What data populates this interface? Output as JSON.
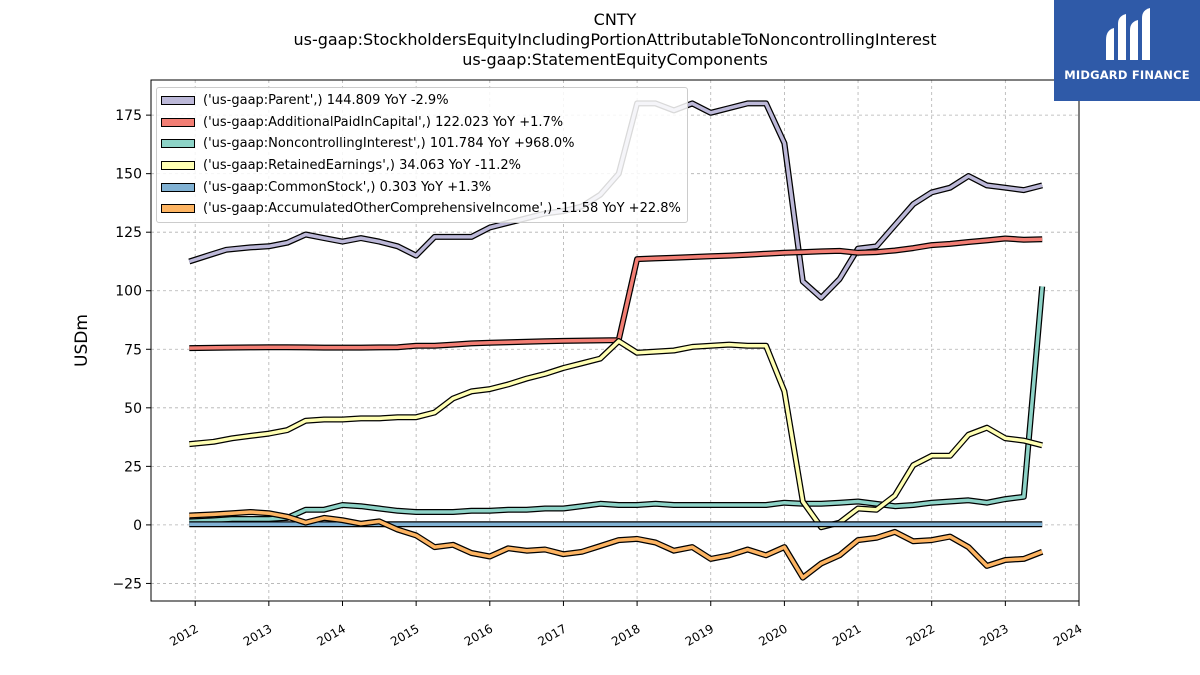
{
  "chart_data": {
    "type": "line",
    "title": "CNTY",
    "subtitle_lines": [
      "us-gaap:StockholdersEquityIncludingPortionAttributableToNoncontrollingInterest",
      "us-gaap:StatementEquityComponents"
    ],
    "ylabel": "USDm",
    "xlabel": "",
    "ylim": [
      -32.5,
      190
    ],
    "yticks": [
      -25,
      0,
      25,
      50,
      75,
      100,
      125,
      150,
      175
    ],
    "xlim": [
      2011.4,
      2024.0
    ],
    "xticks": [
      "2012",
      "2013",
      "2014",
      "2015",
      "2016",
      "2017",
      "2018",
      "2019",
      "2020",
      "2021",
      "2022",
      "2023",
      "2024"
    ],
    "grid": true,
    "legend_position": "top-left",
    "series": [
      {
        "name": "('us-gaap:Parent',) 144.809 YoY -2.9%",
        "color": "#bcb8d8",
        "x": [
          2011.92,
          2012.17,
          2012.42,
          2012.75,
          2013.0,
          2013.25,
          2013.5,
          2013.75,
          2014.0,
          2014.25,
          2014.5,
          2014.75,
          2015.0,
          2015.25,
          2015.5,
          2015.75,
          2016.0,
          2016.25,
          2016.5,
          2016.75,
          2017.0,
          2017.25,
          2017.5,
          2017.75,
          2018.0,
          2018.25,
          2018.5,
          2018.75,
          2019.0,
          2019.25,
          2019.5,
          2019.75,
          2020.0,
          2020.25,
          2020.5,
          2020.75,
          2021.0,
          2021.25,
          2021.5,
          2021.75,
          2022.0,
          2022.25,
          2022.5,
          2022.75,
          2023.0,
          2023.25,
          2023.5
        ],
        "y": [
          112.5,
          115,
          117.5,
          118.5,
          119,
          120.5,
          124,
          122.5,
          121,
          122.5,
          121,
          119,
          115,
          123,
          123,
          123,
          127,
          129,
          131,
          133,
          134,
          136,
          141,
          150,
          180,
          180,
          177,
          180,
          176,
          178,
          180,
          180,
          163,
          104,
          97,
          105,
          118,
          119,
          128,
          137,
          142,
          144,
          149,
          145,
          144,
          143,
          145
        ]
      },
      {
        "name": "('us-gaap:AdditionalPaidInCapital',) 122.023 YoY +1.7%",
        "color": "#f27e74",
        "x": [
          2011.92,
          2012.42,
          2012.75,
          2013.0,
          2013.25,
          2013.5,
          2013.75,
          2014.0,
          2014.25,
          2014.5,
          2014.75,
          2015.0,
          2015.25,
          2015.5,
          2015.75,
          2016.0,
          2016.25,
          2016.5,
          2016.75,
          2017.0,
          2017.25,
          2017.5,
          2017.75,
          2018.0,
          2018.25,
          2018.5,
          2018.75,
          2019.0,
          2019.25,
          2019.5,
          2019.75,
          2020.0,
          2020.25,
          2020.5,
          2020.75,
          2021.0,
          2021.25,
          2021.5,
          2021.75,
          2022.0,
          2022.25,
          2022.5,
          2022.75,
          2023.0,
          2023.25,
          2023.5
        ],
        "y": [
          75.5,
          75.7,
          75.8,
          75.9,
          75.9,
          75.8,
          75.7,
          75.7,
          75.7,
          75.8,
          75.9,
          76.5,
          76.5,
          77.0,
          77.5,
          77.8,
          78.0,
          78.2,
          78.4,
          78.6,
          78.7,
          78.8,
          78.9,
          113.5,
          113.8,
          114.1,
          114.4,
          114.7,
          115.0,
          115.4,
          115.8,
          116.2,
          116.5,
          116.8,
          117.0,
          116.2,
          116.5,
          117.2,
          118.2,
          119.5,
          120.0,
          120.8,
          121.5,
          122.3,
          121.8,
          122.0
        ]
      },
      {
        "name": "('us-gaap:NoncontrollingInterest',) 101.784 YoY +968.0%",
        "color": "#8dd3c7",
        "x": [
          2011.92,
          2012.25,
          2012.5,
          2012.75,
          2013.0,
          2013.25,
          2013.5,
          2013.75,
          2014.0,
          2014.25,
          2014.5,
          2014.75,
          2015.0,
          2015.25,
          2015.5,
          2015.75,
          2016.0,
          2016.25,
          2016.5,
          2016.75,
          2017.0,
          2017.25,
          2017.5,
          2017.75,
          2018.0,
          2018.25,
          2018.5,
          2018.75,
          2019.0,
          2019.25,
          2019.5,
          2019.75,
          2020.0,
          2020.25,
          2020.5,
          2020.75,
          2021.0,
          2021.25,
          2021.5,
          2021.75,
          2022.0,
          2022.25,
          2022.5,
          2022.75,
          2023.0,
          2023.25,
          2023.5
        ],
        "y": [
          1.5,
          2.0,
          2.5,
          2.5,
          2.5,
          3.0,
          6.5,
          6.5,
          8.5,
          8.0,
          7.0,
          6.0,
          5.5,
          5.5,
          5.5,
          6.0,
          6.0,
          6.5,
          6.5,
          7.0,
          7.0,
          8.0,
          9.0,
          8.5,
          8.5,
          9.0,
          8.5,
          8.5,
          8.5,
          8.5,
          8.5,
          8.5,
          9.5,
          9.0,
          9.0,
          9.5,
          10.0,
          9.0,
          8.0,
          8.5,
          9.5,
          10.0,
          10.5,
          9.5,
          11.0,
          12.0,
          101.8
        ]
      },
      {
        "name": "('us-gaap:RetainedEarnings',) 34.063 YoY -11.2%",
        "color": "#ffffb3",
        "x": [
          2011.92,
          2012.25,
          2012.5,
          2012.75,
          2013.0,
          2013.25,
          2013.5,
          2013.75,
          2014.0,
          2014.25,
          2014.5,
          2014.75,
          2015.0,
          2015.25,
          2015.5,
          2015.75,
          2016.0,
          2016.25,
          2016.5,
          2016.75,
          2017.0,
          2017.25,
          2017.5,
          2017.75,
          2018.0,
          2018.25,
          2018.5,
          2018.75,
          2019.0,
          2019.25,
          2019.5,
          2019.75,
          2020.0,
          2020.25,
          2020.5,
          2020.75,
          2021.0,
          2021.25,
          2021.5,
          2021.75,
          2022.0,
          2022.25,
          2022.5,
          2022.75,
          2023.0,
          2023.25,
          2023.5
        ],
        "y": [
          34.5,
          35.5,
          37.0,
          38.0,
          39.0,
          40.5,
          44.5,
          45.0,
          45.0,
          45.5,
          45.5,
          46.0,
          46.0,
          48.0,
          54.0,
          57.0,
          58.0,
          60.0,
          62.5,
          64.5,
          67.0,
          69.0,
          71.0,
          78.5,
          73.5,
          74.0,
          74.5,
          76.0,
          76.5,
          77.0,
          76.5,
          76.5,
          57.0,
          10.0,
          -1.0,
          1.0,
          7.0,
          6.5,
          12.5,
          25.5,
          29.5,
          29.5,
          38.5,
          41.5,
          37.0,
          36.0,
          34.0
        ]
      },
      {
        "name": "('us-gaap:CommonStock',) 0.303 YoY +1.3%",
        "color": "#80b1d3",
        "x": [
          2011.92,
          2012.5,
          2013.0,
          2013.5,
          2014.0,
          2014.5,
          2015.0,
          2015.5,
          2016.0,
          2016.5,
          2017.0,
          2017.5,
          2018.0,
          2018.5,
          2019.0,
          2019.5,
          2020.0,
          2020.5,
          2021.0,
          2021.5,
          2022.0,
          2022.5,
          2023.0,
          2023.5
        ],
        "y": [
          0.25,
          0.25,
          0.25,
          0.26,
          0.26,
          0.26,
          0.27,
          0.27,
          0.27,
          0.28,
          0.28,
          0.28,
          0.29,
          0.29,
          0.29,
          0.29,
          0.29,
          0.3,
          0.3,
          0.3,
          0.3,
          0.3,
          0.3,
          0.303
        ]
      },
      {
        "name": "('us-gaap:AccumulatedOtherComprehensiveIncome',) -11.58 YoY +22.8%",
        "color": "#fdb462",
        "x": [
          2011.92,
          2012.25,
          2012.5,
          2012.75,
          2013.0,
          2013.25,
          2013.5,
          2013.75,
          2014.0,
          2014.25,
          2014.5,
          2014.75,
          2015.0,
          2015.25,
          2015.5,
          2015.75,
          2016.0,
          2016.25,
          2016.5,
          2016.75,
          2017.0,
          2017.25,
          2017.5,
          2017.75,
          2018.0,
          2018.25,
          2018.5,
          2018.75,
          2019.0,
          2019.25,
          2019.5,
          2019.75,
          2020.0,
          2020.25,
          2020.5,
          2020.75,
          2021.0,
          2021.25,
          2021.5,
          2021.75,
          2022.0,
          2022.25,
          2022.5,
          2022.75,
          2023.0,
          2023.25,
          2023.5
        ],
        "y": [
          4.0,
          4.5,
          5.0,
          5.5,
          5.0,
          3.5,
          1.0,
          3.0,
          2.0,
          0.5,
          1.5,
          -2.0,
          -4.5,
          -9.5,
          -8.5,
          -12.0,
          -13.5,
          -10.0,
          -11.0,
          -10.5,
          -12.5,
          -11.5,
          -9.0,
          -6.5,
          -6.0,
          -7.5,
          -11.0,
          -9.5,
          -14.5,
          -13.0,
          -10.5,
          -13.0,
          -9.5,
          -22.5,
          -16.5,
          -13.0,
          -6.5,
          -5.5,
          -3.0,
          -7.0,
          -6.5,
          -5.0,
          -9.5,
          -17.5,
          -15.0,
          -14.5,
          -11.5
        ]
      }
    ]
  },
  "logo": {
    "text": "MIDGARD FINANCE"
  }
}
